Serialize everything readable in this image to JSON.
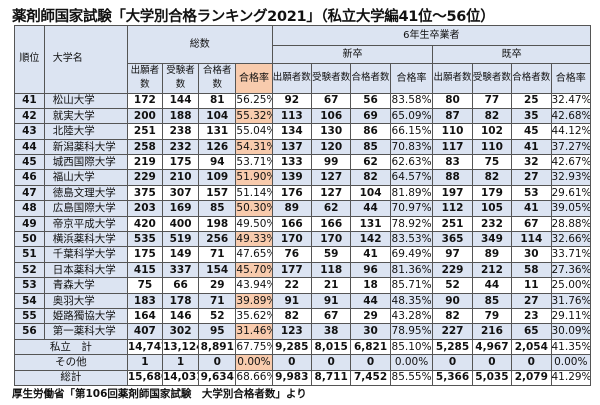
{
  "title": "薬剤師国家試験「大学別合格ランキング2021」（私立大学編41位〜56位）",
  "headers": {
    "rank": "順位",
    "university": "大学名",
    "total_group": "総数",
    "sixth_year_group": "6年生卒業者",
    "new_grad_group": "新卒",
    "prev_grad_group": "既卒",
    "applicants": "出願者数",
    "examinees": "受験者数",
    "passers": "合格者数",
    "pass_rate": "合格率"
  },
  "rows": [
    {
      "rank": "41",
      "name": "松山大学",
      "t": [
        "172",
        "144",
        "81",
        "56.25%"
      ],
      "n": [
        "92",
        "67",
        "56",
        "83.58%"
      ],
      "p": [
        "80",
        "77",
        "25",
        "32.47%"
      ]
    },
    {
      "rank": "42",
      "name": "就実大学",
      "t": [
        "200",
        "188",
        "104",
        "55.32%"
      ],
      "n": [
        "113",
        "106",
        "69",
        "65.09%"
      ],
      "p": [
        "87",
        "82",
        "35",
        "42.68%"
      ]
    },
    {
      "rank": "43",
      "name": "北陸大学",
      "t": [
        "251",
        "238",
        "131",
        "55.04%"
      ],
      "n": [
        "134",
        "130",
        "86",
        "66.15%"
      ],
      "p": [
        "110",
        "102",
        "45",
        "44.12%"
      ]
    },
    {
      "rank": "44",
      "name": "新潟薬科大学",
      "t": [
        "258",
        "232",
        "126",
        "54.31%"
      ],
      "n": [
        "137",
        "120",
        "85",
        "70.83%"
      ],
      "p": [
        "117",
        "110",
        "41",
        "37.27%"
      ]
    },
    {
      "rank": "45",
      "name": "城西国際大学",
      "t": [
        "219",
        "175",
        "94",
        "53.71%"
      ],
      "n": [
        "133",
        "99",
        "62",
        "62.63%"
      ],
      "p": [
        "83",
        "75",
        "32",
        "42.67%"
      ]
    },
    {
      "rank": "46",
      "name": "福山大学",
      "t": [
        "229",
        "210",
        "109",
        "51.90%"
      ],
      "n": [
        "139",
        "127",
        "82",
        "64.57%"
      ],
      "p": [
        "88",
        "82",
        "27",
        "32.93%"
      ]
    },
    {
      "rank": "47",
      "name": "徳島文理大学",
      "t": [
        "375",
        "307",
        "157",
        "51.14%"
      ],
      "n": [
        "176",
        "127",
        "104",
        "81.89%"
      ],
      "p": [
        "197",
        "179",
        "53",
        "29.61%"
      ]
    },
    {
      "rank": "48",
      "name": "広島国際大学",
      "t": [
        "203",
        "169",
        "85",
        "50.30%"
      ],
      "n": [
        "89",
        "62",
        "44",
        "70.97%"
      ],
      "p": [
        "112",
        "105",
        "41",
        "39.05%"
      ]
    },
    {
      "rank": "49",
      "name": "帝京平成大学",
      "t": [
        "420",
        "400",
        "198",
        "49.50%"
      ],
      "n": [
        "166",
        "166",
        "131",
        "78.92%"
      ],
      "p": [
        "251",
        "232",
        "67",
        "28.88%"
      ]
    },
    {
      "rank": "50",
      "name": "横浜薬科大学",
      "t": [
        "535",
        "519",
        "256",
        "49.33%"
      ],
      "n": [
        "170",
        "170",
        "142",
        "83.53%"
      ],
      "p": [
        "365",
        "349",
        "114",
        "32.66%"
      ]
    },
    {
      "rank": "51",
      "name": "千葉科学大学",
      "t": [
        "175",
        "149",
        "71",
        "47.65%"
      ],
      "n": [
        "76",
        "59",
        "41",
        "69.49%"
      ],
      "p": [
        "97",
        "89",
        "30",
        "33.71%"
      ]
    },
    {
      "rank": "52",
      "name": "日本薬科大学",
      "t": [
        "415",
        "337",
        "154",
        "45.70%"
      ],
      "n": [
        "177",
        "118",
        "96",
        "81.36%"
      ],
      "p": [
        "229",
        "212",
        "58",
        "27.36%"
      ]
    },
    {
      "rank": "53",
      "name": "青森大学",
      "t": [
        "75",
        "66",
        "29",
        "43.94%"
      ],
      "n": [
        "22",
        "21",
        "18",
        "85.71%"
      ],
      "p": [
        "52",
        "44",
        "11",
        "25.00%"
      ]
    },
    {
      "rank": "54",
      "name": "奥羽大学",
      "t": [
        "183",
        "178",
        "71",
        "39.89%"
      ],
      "n": [
        "91",
        "91",
        "44",
        "48.35%"
      ],
      "p": [
        "90",
        "85",
        "27",
        "31.76%"
      ]
    },
    {
      "rank": "55",
      "name": "姫路獨協大学",
      "t": [
        "164",
        "146",
        "52",
        "35.62%"
      ],
      "n": [
        "82",
        "67",
        "29",
        "43.28%"
      ],
      "p": [
        "82",
        "79",
        "23",
        "29.11%"
      ]
    },
    {
      "rank": "56",
      "name": "第一薬科大学",
      "t": [
        "407",
        "302",
        "95",
        "31.46%"
      ],
      "n": [
        "123",
        "38",
        "30",
        "78.95%"
      ],
      "p": [
        "227",
        "216",
        "65",
        "30.09%"
      ]
    }
  ],
  "summary": [
    {
      "label": "私立　計",
      "t": [
        "14,747",
        "13,124",
        "8,891",
        "67.75%"
      ],
      "n": [
        "9,285",
        "8,015",
        "6,821",
        "85.10%"
      ],
      "p": [
        "5,285",
        "4,967",
        "2,054",
        "41.35%"
      ]
    },
    {
      "label": "その他",
      "t": [
        "1",
        "1",
        "0",
        "0.00%"
      ],
      "n": [
        "0",
        "0",
        "0",
        "0.00%"
      ],
      "p": [
        "0",
        "0",
        "0",
        "0.00%"
      ]
    },
    {
      "label": "総計",
      "t": [
        "15,680",
        "14,031",
        "9,634",
        "68.66%"
      ],
      "n": [
        "9,983",
        "8,711",
        "7,452",
        "85.55%"
      ],
      "p": [
        "5,366",
        "5,035",
        "2,079",
        "41.29%"
      ]
    }
  ],
  "footnote": "厚生労働省「第106回薬剤師国家試験　大学別合格者数」より",
  "colors": {
    "header_bg": "#dce4f2",
    "rate_highlight": "#f8cbad",
    "border": "#555555"
  }
}
